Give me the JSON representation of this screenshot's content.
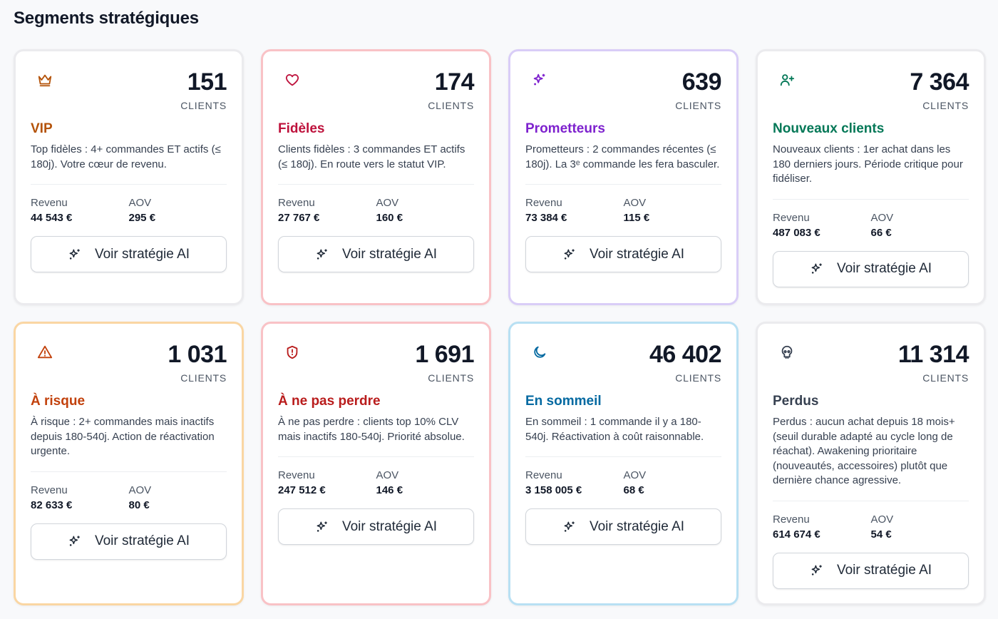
{
  "page_title": "Segments stratégiques",
  "count_label": "CLIENTS",
  "revenue_label": "Revenu",
  "aov_label": "AOV",
  "button_label": "Voir stratégie AI",
  "segments": [
    {
      "name": "VIP",
      "count": "151",
      "description": "Top fidèles : 4+ commandes ET actifs (≤ 180j). Votre cœur de revenu.",
      "revenue": "44 543 €",
      "aov": "295 €",
      "color": "#b45309",
      "icon": "crown-icon"
    },
    {
      "name": "Fidèles",
      "count": "174",
      "description": "Clients fidèles : 3 commandes ET actifs (≤ 180j). En route vers le statut VIP.",
      "revenue": "27 767 €",
      "aov": "160 €",
      "color": "#be123c",
      "icon": "heart-icon"
    },
    {
      "name": "Prometteurs",
      "count": "639",
      "description": "Prometteurs : 2 commandes récentes (≤ 180j). La 3ᵉ commande les fera basculer.",
      "revenue": "73 384 €",
      "aov": "115 €",
      "color": "#7e22ce",
      "icon": "sparkles-icon"
    },
    {
      "name": "Nouveaux clients",
      "count": "7 364",
      "description": "Nouveaux clients : 1er achat dans les 180 derniers jours. Période critique pour fidéliser.",
      "revenue": "487 083 €",
      "aov": "66 €",
      "color": "#047857",
      "icon": "user-plus-icon"
    },
    {
      "name": "À risque",
      "count": "1 031",
      "description": "À risque : 2+ commandes mais inactifs depuis 180-540j. Action de réactivation urgente.",
      "revenue": "82 633 €",
      "aov": "80 €",
      "color": "#c2410c",
      "icon": "warning-icon"
    },
    {
      "name": "À ne pas perdre",
      "count": "1 691",
      "description": "À ne pas perdre : clients top 10% CLV mais inactifs 180-540j. Priorité absolue.",
      "revenue": "247 512 €",
      "aov": "146 €",
      "color": "#b91c1c",
      "icon": "shield-alert-icon"
    },
    {
      "name": "En sommeil",
      "count": "46 402",
      "description": "En sommeil : 1 commande il y a 180-540j. Réactivation à coût raisonnable.",
      "revenue": "3 158 005 €",
      "aov": "68 €",
      "color": "#0369a1",
      "icon": "moon-icon"
    },
    {
      "name": "Perdus",
      "count": "11 314",
      "description": "Perdus : aucun achat depuis 18 mois+ (seuil durable adapté au cycle long de réachat). Awakening prioritaire (nouveautés, accessoires) plutôt que dernière chance agressive.",
      "revenue": "614 674 €",
      "aov": "54 €",
      "color": "#374151",
      "icon": "skull-icon"
    }
  ]
}
